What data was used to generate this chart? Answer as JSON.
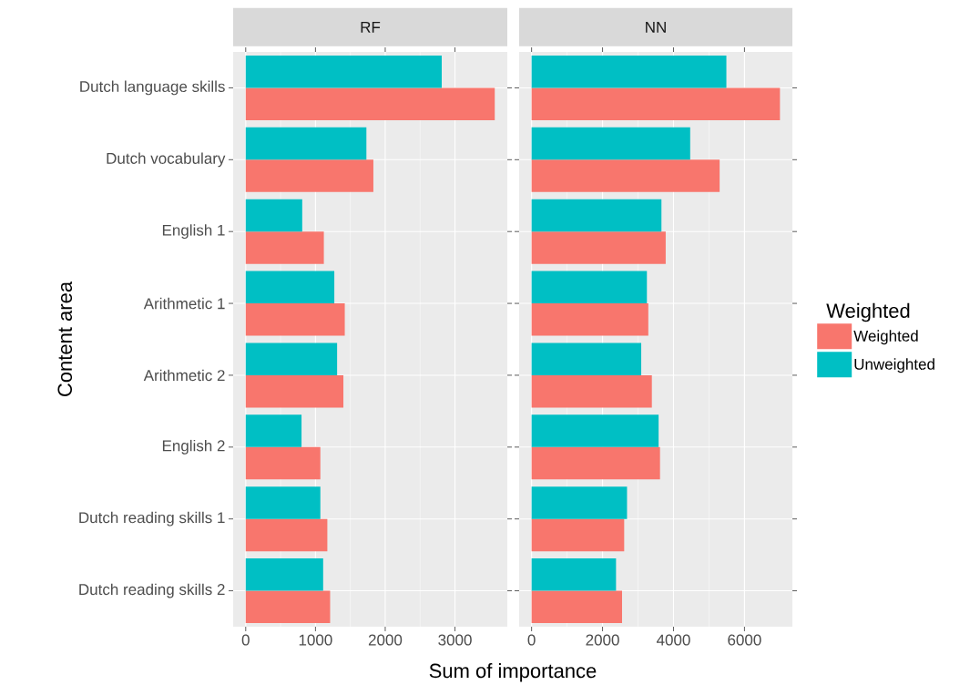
{
  "chart_data": [
    {
      "type": "bar",
      "orientation": "horizontal",
      "title": "RF",
      "xlabel": "Sum of importance",
      "ylabel": "Content area",
      "categories": [
        "Dutch language skills",
        "Dutch vocabulary",
        "English 1",
        "Arithmetic 1",
        "Arithmetic 2",
        "English 2",
        "Dutch reading skills 1",
        "Dutch reading skills 2"
      ],
      "series": [
        {
          "color": "#f8766d",
          "values": [
            3570,
            1830,
            1120,
            1420,
            1400,
            1070,
            1170,
            1210
          ]
        },
        {
          "color": "#00bfc4",
          "values": [
            2810,
            1730,
            810,
            1270,
            1310,
            800,
            1070,
            1110
          ]
        }
      ],
      "xlim": [
        -180,
        3750
      ],
      "xticks": [
        0,
        1000,
        2000,
        3000
      ],
      "grid": true
    },
    {
      "type": "bar",
      "orientation": "horizontal",
      "title": "NN",
      "legend_title": "Weighted",
      "legend": "right",
      "tick_labels": "x",
      "categories": [
        null,
        null,
        null,
        null,
        null,
        null,
        null,
        null
      ],
      "series": [
        {
          "name": "Weighted",
          "color": "#f8766d",
          "values": [
            7000,
            5300,
            3780,
            3290,
            3390,
            3620,
            2610,
            2550
          ]
        },
        {
          "name": "Unweighted",
          "color": "#00bfc4",
          "values": [
            5490,
            4470,
            3660,
            3250,
            3090,
            3580,
            2690,
            2380
          ]
        }
      ],
      "xlim": [
        -350,
        7350
      ],
      "xticks": [
        0,
        2000,
        4000,
        6000
      ],
      "grid": true
    }
  ]
}
